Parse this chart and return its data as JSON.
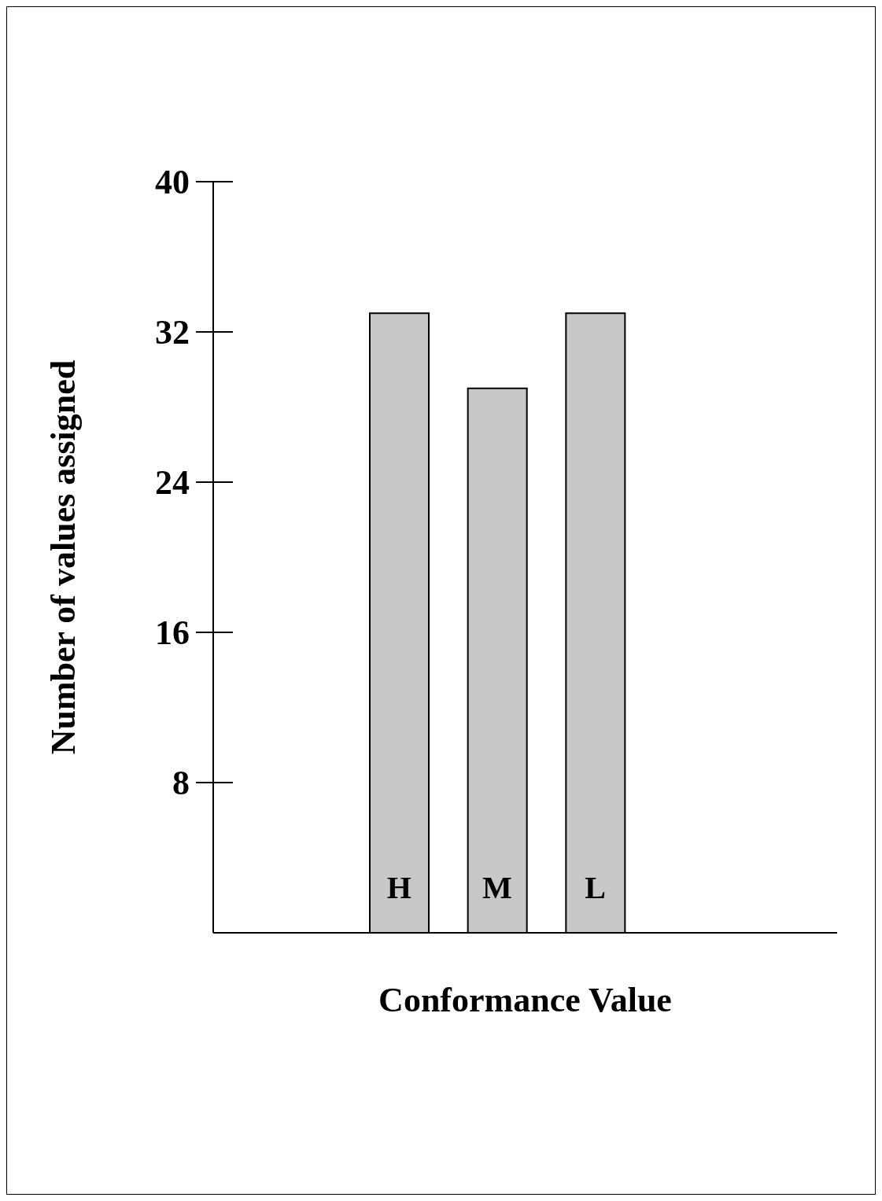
{
  "chart_data": {
    "type": "bar",
    "xlabel": "Conformance Value",
    "ylabel": "Number of values assigned",
    "categories": [
      "H",
      "M",
      "L"
    ],
    "values": [
      33,
      29,
      33
    ],
    "color": "#c8c8c8",
    "ylim": [
      0,
      40
    ],
    "yticks": [
      8,
      16,
      24,
      32,
      40
    ]
  }
}
